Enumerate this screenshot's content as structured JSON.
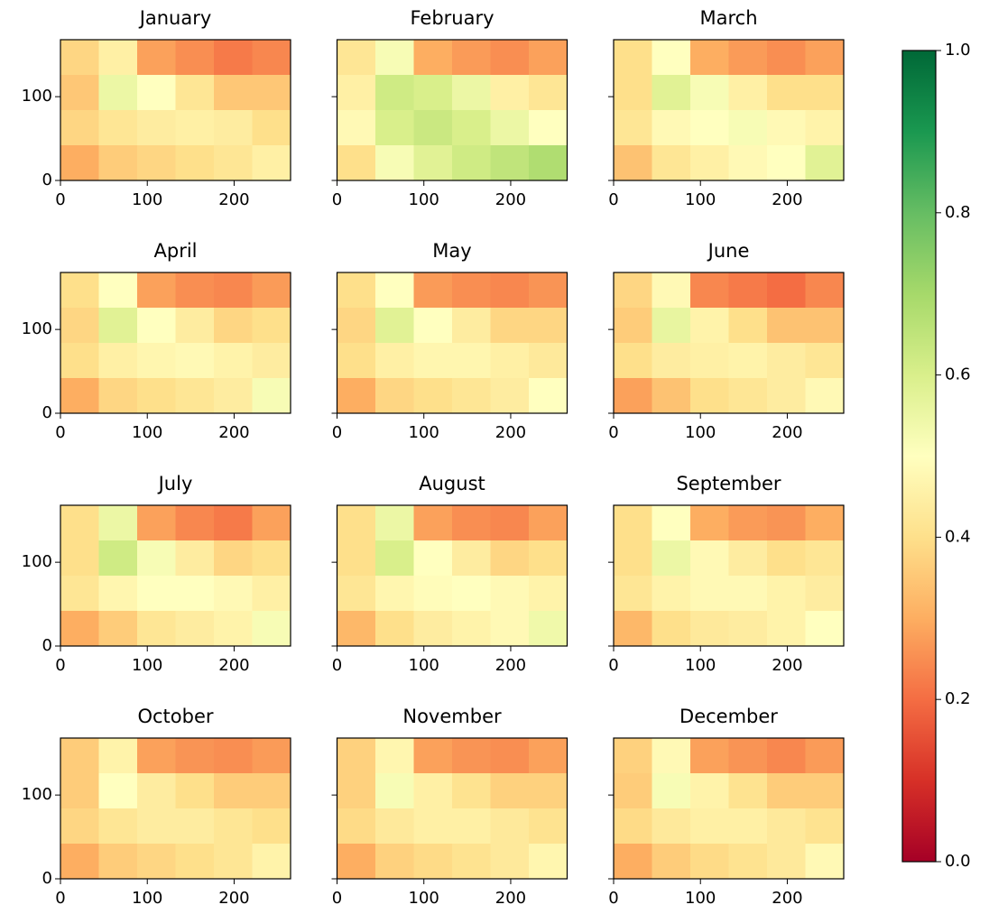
{
  "chart_data": [
    {
      "type": "heatmap",
      "title": "January",
      "xlim": [
        0,
        265
      ],
      "ylim": [
        0,
        168
      ],
      "xticks": [
        0,
        100,
        200
      ],
      "yticks": [
        0,
        100
      ],
      "values": [
        [
          0.38,
          0.45,
          0.28,
          0.25,
          0.22,
          0.24
        ],
        [
          0.35,
          0.55,
          0.5,
          0.42,
          0.35,
          0.35
        ],
        [
          0.38,
          0.42,
          0.44,
          0.45,
          0.44,
          0.4
        ],
        [
          0.3,
          0.36,
          0.38,
          0.4,
          0.42,
          0.45
        ]
      ]
    },
    {
      "type": "heatmap",
      "title": "February",
      "xlim": [
        0,
        265
      ],
      "ylim": [
        0,
        168
      ],
      "xticks": [
        0,
        100,
        200
      ],
      "yticks": [
        0,
        100
      ],
      "values": [
        [
          0.42,
          0.52,
          0.3,
          0.27,
          0.25,
          0.28
        ],
        [
          0.45,
          0.62,
          0.6,
          0.55,
          0.45,
          0.42
        ],
        [
          0.48,
          0.6,
          0.63,
          0.6,
          0.55,
          0.5
        ],
        [
          0.4,
          0.52,
          0.58,
          0.62,
          0.65,
          0.68
        ]
      ]
    },
    {
      "type": "heatmap",
      "title": "March",
      "xlim": [
        0,
        265
      ],
      "ylim": [
        0,
        168
      ],
      "xticks": [
        0,
        100,
        200
      ],
      "yticks": [
        0,
        100
      ],
      "values": [
        [
          0.4,
          0.5,
          0.3,
          0.27,
          0.25,
          0.28
        ],
        [
          0.4,
          0.58,
          0.52,
          0.45,
          0.4,
          0.4
        ],
        [
          0.42,
          0.48,
          0.5,
          0.52,
          0.48,
          0.46
        ],
        [
          0.34,
          0.42,
          0.45,
          0.48,
          0.5,
          0.58
        ]
      ]
    },
    {
      "type": "heatmap",
      "title": "April",
      "xlim": [
        0,
        265
      ],
      "ylim": [
        0,
        168
      ],
      "xticks": [
        0,
        100,
        200
      ],
      "yticks": [
        0,
        100
      ],
      "values": [
        [
          0.4,
          0.5,
          0.28,
          0.25,
          0.24,
          0.27
        ],
        [
          0.38,
          0.58,
          0.5,
          0.44,
          0.38,
          0.4
        ],
        [
          0.4,
          0.45,
          0.47,
          0.48,
          0.46,
          0.44
        ],
        [
          0.3,
          0.38,
          0.4,
          0.42,
          0.44,
          0.52
        ]
      ]
    },
    {
      "type": "heatmap",
      "title": "May",
      "xlim": [
        0,
        265
      ],
      "ylim": [
        0,
        168
      ],
      "xticks": [
        0,
        100,
        200
      ],
      "yticks": [
        0,
        100
      ],
      "values": [
        [
          0.4,
          0.5,
          0.27,
          0.25,
          0.24,
          0.26
        ],
        [
          0.38,
          0.58,
          0.5,
          0.44,
          0.38,
          0.38
        ],
        [
          0.4,
          0.45,
          0.47,
          0.47,
          0.45,
          0.43
        ],
        [
          0.3,
          0.38,
          0.4,
          0.42,
          0.44,
          0.5
        ]
      ]
    },
    {
      "type": "heatmap",
      "title": "June",
      "xlim": [
        0,
        265
      ],
      "ylim": [
        0,
        168
      ],
      "xticks": [
        0,
        100,
        200
      ],
      "yticks": [
        0,
        100
      ],
      "values": [
        [
          0.38,
          0.48,
          0.24,
          0.22,
          0.2,
          0.24
        ],
        [
          0.36,
          0.56,
          0.46,
          0.4,
          0.34,
          0.34
        ],
        [
          0.4,
          0.44,
          0.45,
          0.46,
          0.44,
          0.42
        ],
        [
          0.28,
          0.34,
          0.4,
          0.42,
          0.44,
          0.48
        ]
      ]
    },
    {
      "type": "heatmap",
      "title": "July",
      "xlim": [
        0,
        265
      ],
      "ylim": [
        0,
        168
      ],
      "xticks": [
        0,
        100,
        200
      ],
      "yticks": [
        0,
        100
      ],
      "values": [
        [
          0.4,
          0.55,
          0.28,
          0.24,
          0.22,
          0.28
        ],
        [
          0.4,
          0.62,
          0.52,
          0.44,
          0.38,
          0.4
        ],
        [
          0.42,
          0.47,
          0.5,
          0.5,
          0.48,
          0.45
        ],
        [
          0.3,
          0.36,
          0.42,
          0.44,
          0.46,
          0.52
        ]
      ]
    },
    {
      "type": "heatmap",
      "title": "August",
      "xlim": [
        0,
        265
      ],
      "ylim": [
        0,
        168
      ],
      "xticks": [
        0,
        100,
        200
      ],
      "yticks": [
        0,
        100
      ],
      "values": [
        [
          0.4,
          0.55,
          0.28,
          0.25,
          0.24,
          0.28
        ],
        [
          0.4,
          0.6,
          0.5,
          0.44,
          0.38,
          0.4
        ],
        [
          0.42,
          0.47,
          0.49,
          0.5,
          0.48,
          0.46
        ],
        [
          0.32,
          0.4,
          0.44,
          0.46,
          0.48,
          0.54
        ]
      ]
    },
    {
      "type": "heatmap",
      "title": "September",
      "xlim": [
        0,
        265
      ],
      "ylim": [
        0,
        168
      ],
      "xticks": [
        0,
        100,
        200
      ],
      "yticks": [
        0,
        100
      ],
      "values": [
        [
          0.4,
          0.5,
          0.3,
          0.27,
          0.26,
          0.3
        ],
        [
          0.4,
          0.55,
          0.48,
          0.44,
          0.4,
          0.42
        ],
        [
          0.42,
          0.46,
          0.48,
          0.48,
          0.46,
          0.44
        ],
        [
          0.32,
          0.4,
          0.43,
          0.44,
          0.46,
          0.5
        ]
      ]
    },
    {
      "type": "heatmap",
      "title": "October",
      "xlim": [
        0,
        265
      ],
      "ylim": [
        0,
        168
      ],
      "xticks": [
        0,
        100,
        200
      ],
      "yticks": [
        0,
        100
      ],
      "values": [
        [
          0.36,
          0.46,
          0.28,
          0.26,
          0.25,
          0.27
        ],
        [
          0.36,
          0.5,
          0.44,
          0.4,
          0.36,
          0.36
        ],
        [
          0.38,
          0.42,
          0.44,
          0.44,
          0.42,
          0.4
        ],
        [
          0.3,
          0.36,
          0.38,
          0.4,
          0.42,
          0.46
        ]
      ]
    },
    {
      "type": "heatmap",
      "title": "November",
      "xlim": [
        0,
        265
      ],
      "ylim": [
        0,
        168
      ],
      "xticks": [
        0,
        100,
        200
      ],
      "yticks": [
        0,
        100
      ],
      "values": [
        [
          0.37,
          0.47,
          0.28,
          0.26,
          0.25,
          0.28
        ],
        [
          0.37,
          0.52,
          0.45,
          0.41,
          0.37,
          0.37
        ],
        [
          0.39,
          0.43,
          0.45,
          0.45,
          0.43,
          0.41
        ],
        [
          0.3,
          0.37,
          0.39,
          0.41,
          0.43,
          0.47
        ]
      ]
    },
    {
      "type": "heatmap",
      "title": "December",
      "xlim": [
        0,
        265
      ],
      "ylim": [
        0,
        168
      ],
      "xticks": [
        0,
        100,
        200
      ],
      "yticks": [
        0,
        100
      ],
      "values": [
        [
          0.37,
          0.48,
          0.28,
          0.26,
          0.24,
          0.27
        ],
        [
          0.36,
          0.52,
          0.46,
          0.41,
          0.36,
          0.36
        ],
        [
          0.39,
          0.43,
          0.45,
          0.45,
          0.43,
          0.41
        ],
        [
          0.3,
          0.36,
          0.39,
          0.41,
          0.43,
          0.48
        ]
      ]
    }
  ],
  "colorbar": {
    "clim": [
      0,
      1
    ],
    "ticks": [
      {
        "value": 0,
        "label": "0.0"
      },
      0.2,
      0.4,
      0.6,
      0.8,
      {
        "value": 1,
        "label": "1.0"
      }
    ],
    "colormap": [
      "#a50026",
      "#d73027",
      "#f46d43",
      "#fdae61",
      "#fee08b",
      "#ffffbf",
      "#d9ef8b",
      "#a6d96a",
      "#66bd63",
      "#1a9850",
      "#006837"
    ]
  }
}
